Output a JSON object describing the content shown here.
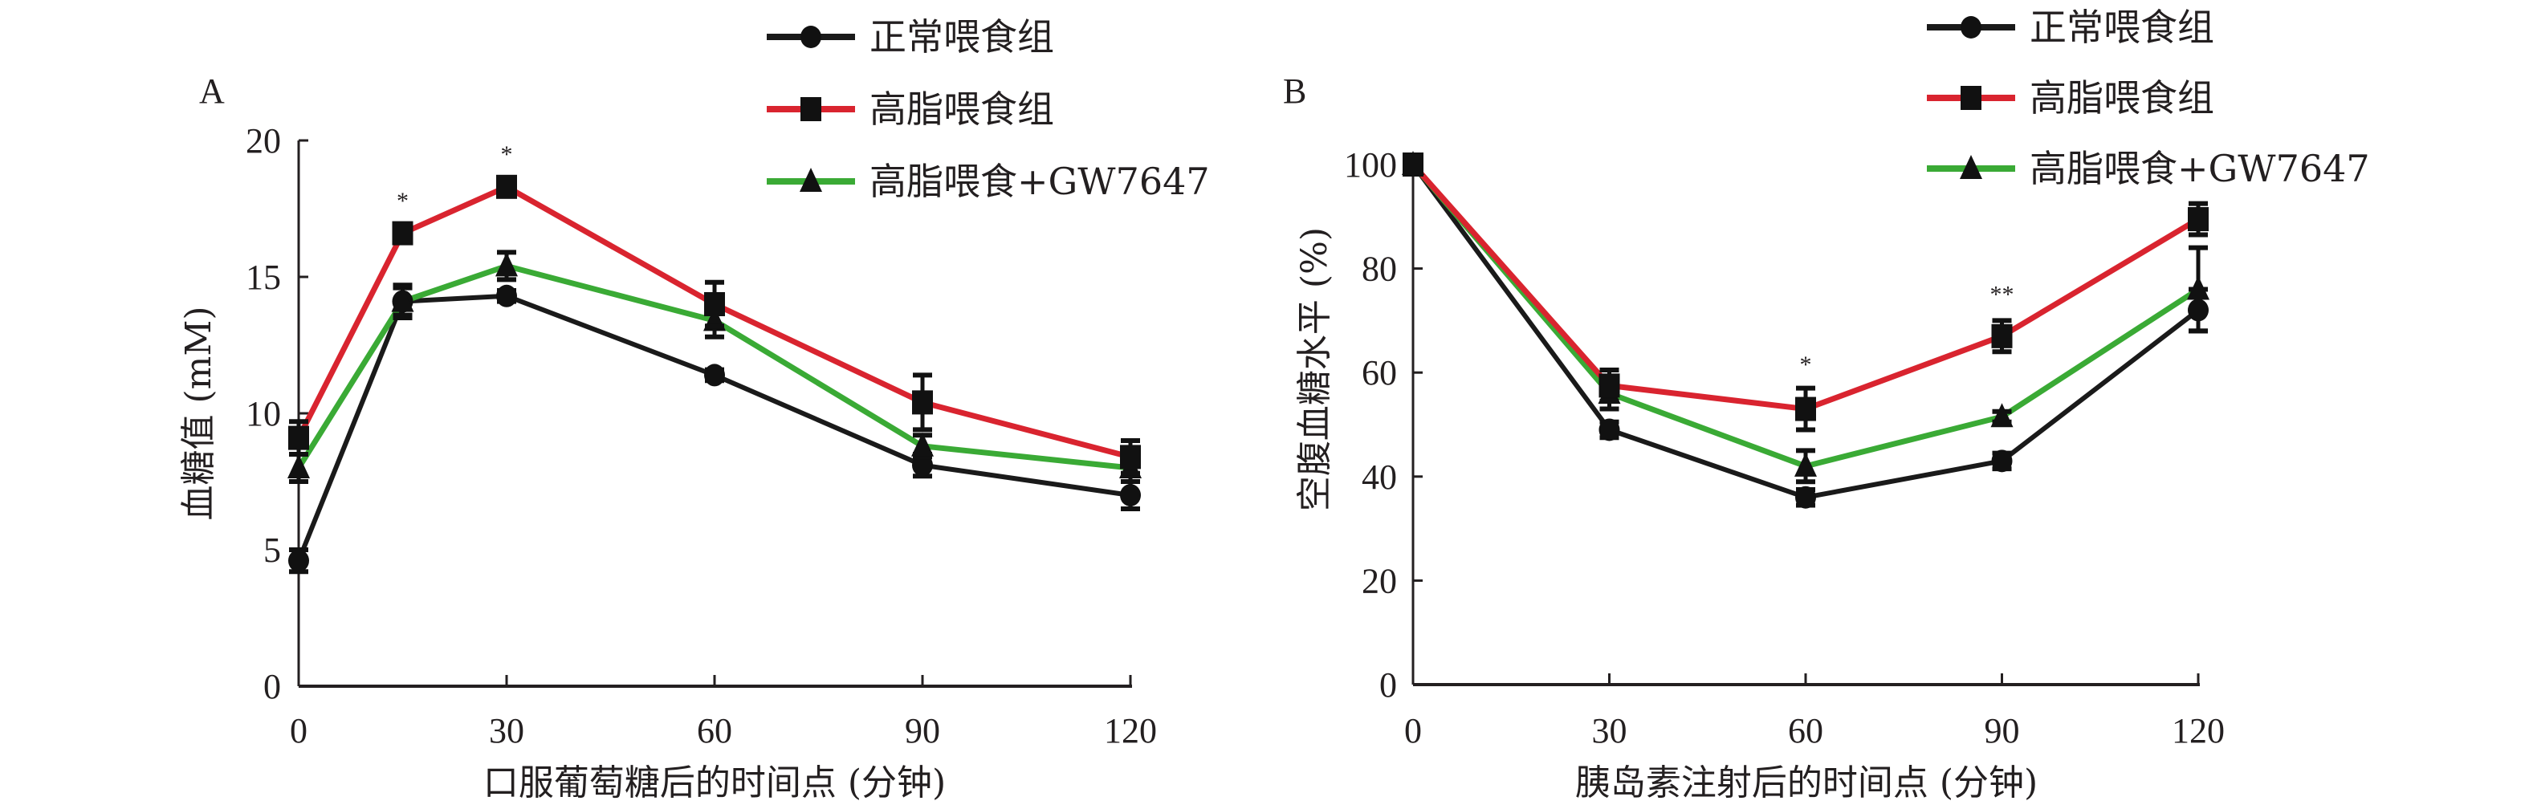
{
  "chart_data": [
    {
      "panel": "A",
      "type": "line",
      "xlabel": "口服葡萄糖后的时间点 (分钟)",
      "ylabel": "血糖值 (mM)",
      "x": [
        0,
        15,
        30,
        60,
        90,
        120
      ],
      "xticks": [
        "0",
        "30",
        "60",
        "90",
        "120"
      ],
      "xtick_values": [
        0,
        30,
        60,
        90,
        120
      ],
      "yticks": [
        "0",
        "5",
        "10",
        "15",
        "20"
      ],
      "ytick_values": [
        0,
        5,
        10,
        15,
        20
      ],
      "xlim": [
        0,
        120
      ],
      "ylim": [
        0,
        20
      ],
      "grid": false,
      "legend_position": "top-right",
      "series": [
        {
          "name": "正常喂食组",
          "color": "#1a1a1a",
          "marker": "circle",
          "values": [
            4.6,
            14.1,
            14.3,
            11.4,
            8.1,
            7.0
          ],
          "errors": [
            0.4,
            0.5,
            0.2,
            0.2,
            0.4,
            0.5
          ]
        },
        {
          "name": "高脂喂食组",
          "color": "#d9242f",
          "marker": "square",
          "values": [
            9.1,
            16.6,
            18.3,
            14.0,
            10.4,
            8.4
          ],
          "errors": [
            0.6,
            0.3,
            0.3,
            0.8,
            1.0,
            0.6
          ]
        },
        {
          "name": "高脂喂食+GW7647",
          "color": "#3aaa35",
          "marker": "triangle",
          "values": [
            8.0,
            14.1,
            15.4,
            13.4,
            8.8,
            8.0
          ],
          "errors": [
            0.5,
            0.6,
            0.5,
            0.6,
            0.4,
            0.5
          ]
        }
      ],
      "annotations": [
        {
          "x": 15,
          "y": 17.5,
          "text": "*"
        },
        {
          "x": 30,
          "y": 19.2,
          "text": "*"
        }
      ]
    },
    {
      "panel": "B",
      "type": "line",
      "xlabel": "胰岛素注射后的时间点 (分钟)",
      "ylabel": "空腹血糖水平 (%)",
      "x": [
        0,
        30,
        60,
        90,
        120
      ],
      "xticks": [
        "0",
        "30",
        "60",
        "90",
        "120"
      ],
      "xtick_values": [
        0,
        30,
        60,
        90,
        120
      ],
      "yticks": [
        "0",
        "20",
        "40",
        "60",
        "80",
        "100"
      ],
      "ytick_values": [
        0,
        20,
        40,
        60,
        80,
        100
      ],
      "xlim": [
        0,
        120
      ],
      "ylim": [
        0,
        100
      ],
      "grid": false,
      "legend_position": "top-right",
      "series": [
        {
          "name": "正常喂食组",
          "color": "#1a1a1a",
          "marker": "circle",
          "values": [
            100,
            49,
            36,
            43,
            72
          ],
          "errors": [
            0,
            1.5,
            1.5,
            1.5,
            4
          ]
        },
        {
          "name": "高脂喂食组",
          "color": "#d9242f",
          "marker": "square",
          "values": [
            100,
            57.5,
            53,
            67,
            89.5
          ],
          "errors": [
            0,
            3,
            4,
            3,
            3
          ]
        },
        {
          "name": "高脂喂食+GW7647",
          "color": "#3aaa35",
          "marker": "triangle",
          "values": [
            100,
            56,
            42,
            51.5,
            76
          ],
          "errors": [
            0,
            3,
            3,
            1,
            8
          ]
        }
      ],
      "annotations": [
        {
          "x": 60,
          "y": 60,
          "text": "*"
        },
        {
          "x": 90,
          "y": 73.5,
          "text": "**"
        }
      ]
    }
  ]
}
